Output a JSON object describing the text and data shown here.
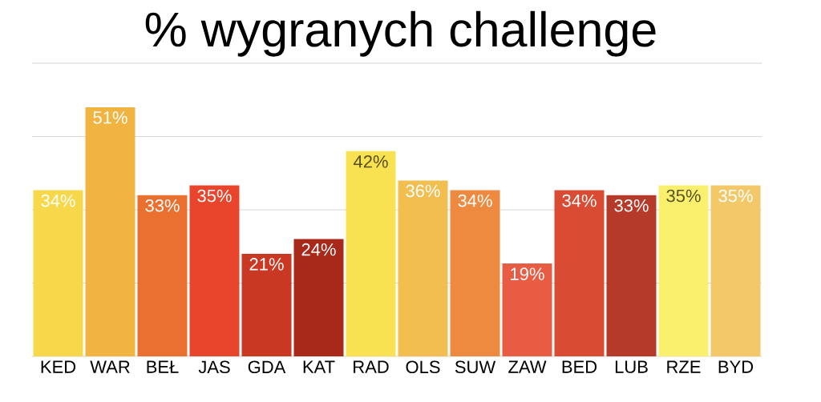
{
  "chart_data": {
    "type": "bar",
    "title": "% wygranych challenge",
    "categories": [
      "KED",
      "WAR",
      "BEŁ",
      "JAS",
      "GDA",
      "KAT",
      "RAD",
      "OLS",
      "SUW",
      "ZAW",
      "BED",
      "LUB",
      "RZE",
      "BYD"
    ],
    "values": [
      34,
      51,
      33,
      35,
      21,
      24,
      42,
      36,
      34,
      19,
      34,
      33,
      35,
      35
    ],
    "value_labels": [
      "34%",
      "51%",
      "33%",
      "35%",
      "21%",
      "24%",
      "42%",
      "36%",
      "34%",
      "19%",
      "34%",
      "33%",
      "35%",
      "35%"
    ],
    "colors": [
      "#f6d84a",
      "#f2b440",
      "#ea7030",
      "#e8452c",
      "#c93822",
      "#a8291a",
      "#f9e252",
      "#f2be50",
      "#ee8a40",
      "#e85c44",
      "#d94b32",
      "#b53a2a",
      "#fbef6e",
      "#f2c868"
    ],
    "ylim": [
      0,
      60
    ],
    "yticks": [
      {
        "value": 0,
        "label": null
      },
      {
        "value": 15,
        "label": null
      },
      {
        "value": 30,
        "label": null
      },
      {
        "value": 45,
        "label": null
      },
      {
        "value": 60,
        "label": null
      }
    ],
    "grid": "y",
    "tick_labels": "x"
  }
}
